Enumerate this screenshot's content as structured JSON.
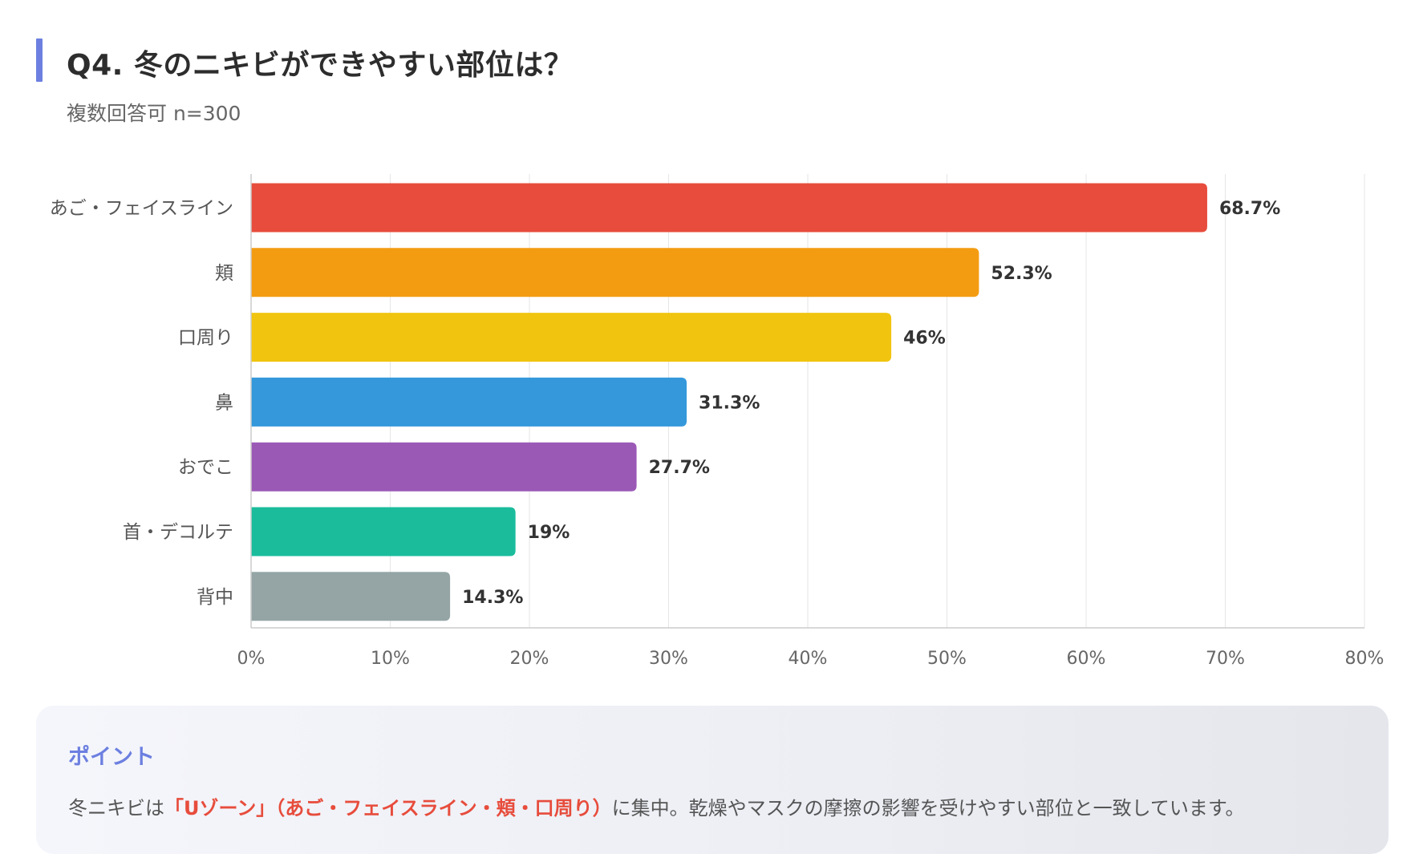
{
  "header": {
    "title": "Q4. 冬のニキビができやすい部位は？",
    "subtitle": "複数回答可 n=300"
  },
  "colors": {
    "accent": "#6c7fe0",
    "highlight": "#e74c3c"
  },
  "chart_data": {
    "type": "bar",
    "orientation": "horizontal",
    "categories": [
      "あご・フェイスライン",
      "頬",
      "口周り",
      "鼻",
      "おでこ",
      "首・デコルテ",
      "背中"
    ],
    "values": [
      68.7,
      52.3,
      46,
      31.3,
      27.7,
      19,
      14.3
    ],
    "value_labels": [
      "68.7%",
      "52.3%",
      "46%",
      "31.3%",
      "27.7%",
      "19%",
      "14.3%"
    ],
    "bar_colors": [
      "#e74c3c",
      "#f39c12",
      "#f1c40f",
      "#3498db",
      "#9b59b6",
      "#1abc9c",
      "#95a5a6"
    ],
    "xlim": [
      0,
      80
    ],
    "xticks": [
      0,
      10,
      20,
      30,
      40,
      50,
      60,
      70,
      80
    ],
    "xtick_labels": [
      "0%",
      "10%",
      "20%",
      "30%",
      "40%",
      "50%",
      "60%",
      "70%",
      "80%"
    ],
    "grid": true
  },
  "point": {
    "heading": "ポイント",
    "text_before": "冬ニキビは",
    "text_highlight": "「Uゾーン」（あご・フェイスライン・頬・口周り）",
    "text_after": "に集中。乾燥やマスクの摩擦の影響を受けやすい部位と一致しています。"
  }
}
